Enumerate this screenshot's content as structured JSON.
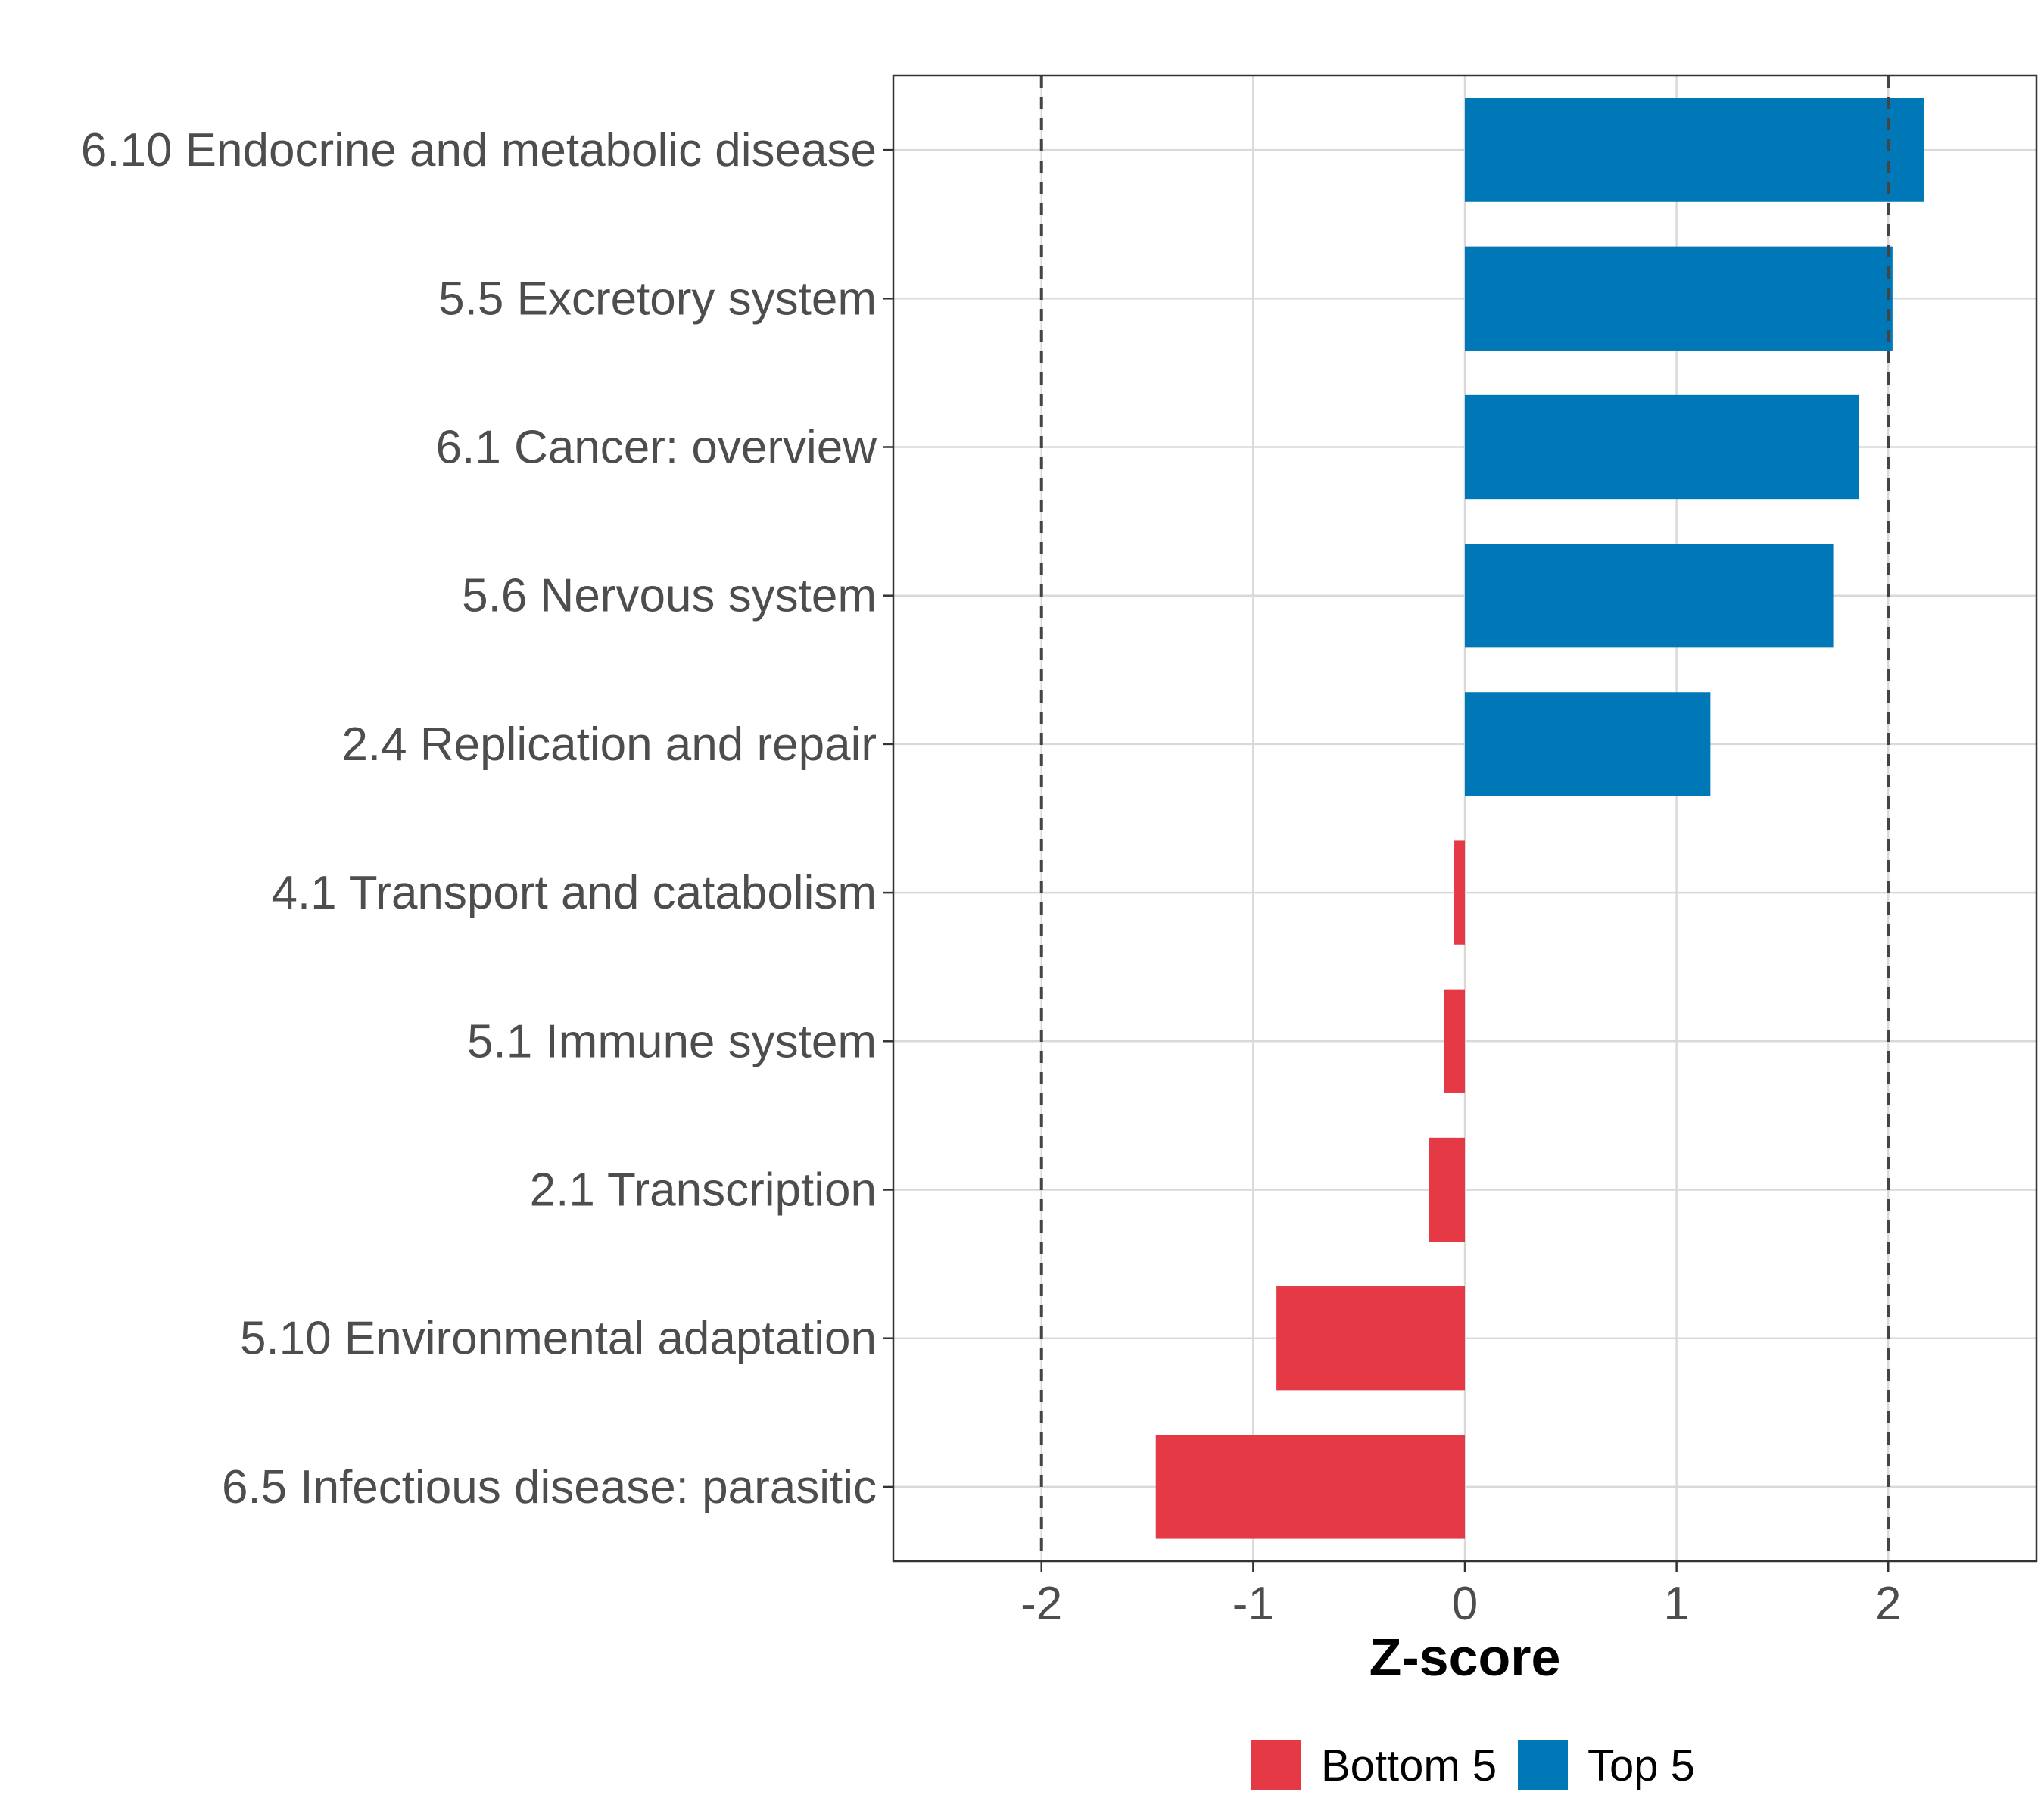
{
  "chart_data": {
    "type": "bar",
    "orientation": "horizontal",
    "categories": [
      "6.10 Endocrine and metabolic disease",
      "5.5 Excretory system",
      "6.1 Cancer: overview",
      "5.6 Nervous system",
      "2.4 Replication and repair",
      "4.1 Transport and catabolism",
      "5.1 Immune system",
      "2.1 Transcription",
      "5.10 Environmental adaptation",
      "6.5 Infectious disease: parasitic"
    ],
    "values": [
      2.17,
      2.02,
      1.86,
      1.74,
      1.16,
      -0.05,
      -0.1,
      -0.17,
      -0.89,
      -1.46
    ],
    "groups": [
      "Top 5",
      "Top 5",
      "Top 5",
      "Top 5",
      "Top 5",
      "Bottom 5",
      "Bottom 5",
      "Bottom 5",
      "Bottom 5",
      "Bottom 5"
    ],
    "xlabel": "Z-score",
    "ylabel": "",
    "xlim": [
      -2.7,
      2.7
    ],
    "xticks": [
      "-2",
      "-1",
      "0",
      "1",
      "2"
    ],
    "xtick_values": [
      -2,
      -1,
      0,
      1,
      2
    ],
    "reference_lines": [
      -2,
      2
    ],
    "grid": true,
    "legend": {
      "position": "bottom",
      "entries": [
        {
          "label": "Bottom 5",
          "color": "#E63946"
        },
        {
          "label": "Top 5",
          "color": "#0077B6"
        }
      ]
    },
    "colors": {
      "Top 5": "#0077B6",
      "Bottom 5": "#E63946"
    }
  }
}
